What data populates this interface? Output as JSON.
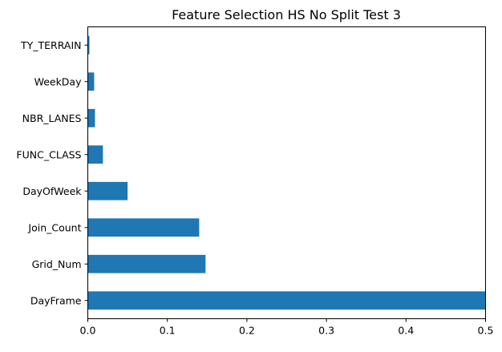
{
  "chart_data": {
    "type": "bar",
    "orientation": "horizontal",
    "title": "Feature Selection HS No Split Test 3",
    "xlabel": "",
    "ylabel": "",
    "categories": [
      "DayFrame",
      "Grid_Num",
      "Join_Count",
      "DayOfWeek",
      "FUNC_CLASS",
      "NBR_LANES",
      "WeekDay",
      "TY_TERRAIN"
    ],
    "values": [
      0.5,
      0.148,
      0.14,
      0.05,
      0.019,
      0.009,
      0.008,
      0.002
    ],
    "xlim": [
      0.0,
      0.5
    ],
    "xticks": [
      0.0,
      0.1,
      0.2,
      0.3,
      0.4,
      0.5
    ],
    "xtick_labels": [
      "0.0",
      "0.1",
      "0.2",
      "0.3",
      "0.4",
      "0.5"
    ],
    "grid": false,
    "bar_color": "#1f77b4"
  }
}
